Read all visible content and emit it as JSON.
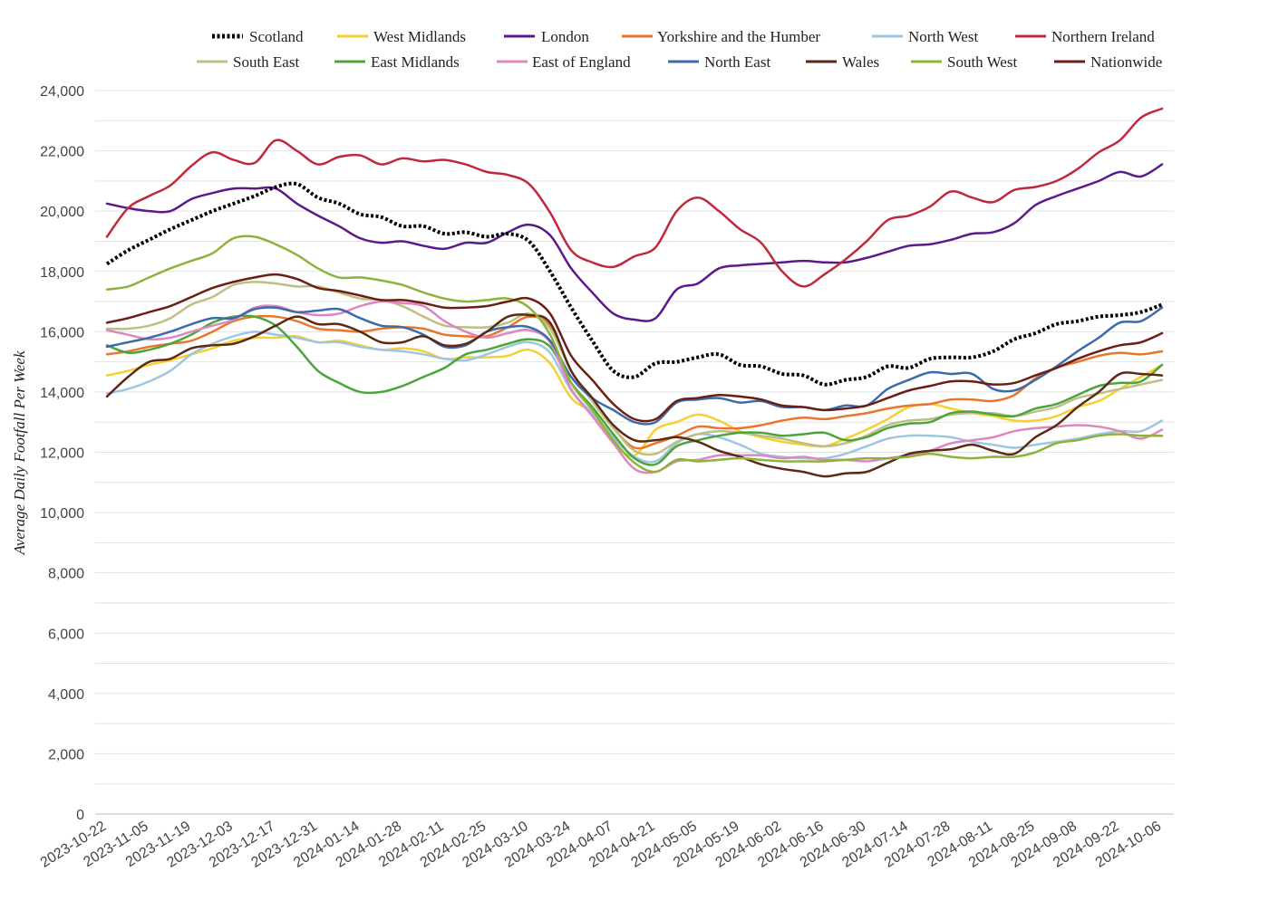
{
  "chart_data": {
    "type": "line",
    "title": "",
    "xlabel": "",
    "ylabel": "Average Daily Footfall Per Week",
    "ylim": [
      0,
      24000
    ],
    "yticks": [
      0,
      2000,
      4000,
      6000,
      8000,
      10000,
      12000,
      14000,
      16000,
      18000,
      20000,
      22000,
      24000
    ],
    "ytick_labels": [
      "0",
      "2,000",
      "4,000",
      "6,000",
      "8,000",
      "10,000",
      "12,000",
      "14,000",
      "16,000",
      "18,000",
      "20,000",
      "22,000",
      "24,000"
    ],
    "grid": true,
    "legend_position": "top",
    "x": [
      "2023-10-22",
      "2023-10-29",
      "2023-11-05",
      "2023-11-12",
      "2023-11-19",
      "2023-11-26",
      "2023-12-03",
      "2023-12-10",
      "2023-12-17",
      "2023-12-24",
      "2023-12-31",
      "2024-01-07",
      "2024-01-14",
      "2024-01-21",
      "2024-01-28",
      "2024-02-04",
      "2024-02-11",
      "2024-02-18",
      "2024-02-25",
      "2024-03-03",
      "2024-03-10",
      "2024-03-17",
      "2024-03-24",
      "2024-03-31",
      "2024-04-07",
      "2024-04-14",
      "2024-04-21",
      "2024-04-28",
      "2024-05-05",
      "2024-05-12",
      "2024-05-19",
      "2024-05-26",
      "2024-06-02",
      "2024-06-09",
      "2024-06-16",
      "2024-06-23",
      "2024-06-30",
      "2024-07-07",
      "2024-07-14",
      "2024-07-21",
      "2024-07-28",
      "2024-08-04",
      "2024-08-11",
      "2024-08-18",
      "2024-08-25",
      "2024-09-01",
      "2024-09-08",
      "2024-09-15",
      "2024-09-22",
      "2024-09-29",
      "2024-10-06"
    ],
    "x_tick_labels": [
      "2023-10-22",
      "2023-11-05",
      "2023-11-19",
      "2023-12-03",
      "2023-12-17",
      "2023-12-31",
      "2024-01-14",
      "2024-01-28",
      "2024-02-11",
      "2024-02-25",
      "2024-03-10",
      "2024-03-24",
      "2024-04-07",
      "2024-04-21",
      "2024-05-05",
      "2024-05-19",
      "2024-06-02",
      "2024-06-16",
      "2024-06-30",
      "2024-07-14",
      "2024-07-28",
      "2024-08-11",
      "2024-08-25",
      "2024-09-08",
      "2024-09-22",
      "2024-10-06"
    ],
    "series": [
      {
        "name": "Scotland",
        "color": "#000000",
        "dashed": true,
        "values": [
          18250,
          18700,
          19050,
          19400,
          19700,
          20000,
          20250,
          20500,
          20800,
          20900,
          20450,
          20250,
          19900,
          19800,
          19500,
          19500,
          19250,
          19300,
          19150,
          19250,
          19000,
          18000,
          16800,
          15700,
          14700,
          14500,
          14950,
          15000,
          15150,
          15250,
          14900,
          14850,
          14600,
          14550,
          14250,
          14400,
          14500,
          14850,
          14800,
          15100,
          15150,
          15150,
          15350,
          15750,
          15950,
          16250,
          16350,
          16500,
          16550,
          16650,
          16900
        ]
      },
      {
        "name": "West Midlands",
        "color": "#f5d033",
        "dashed": false,
        "values": [
          14550,
          14700,
          14900,
          15050,
          15250,
          15450,
          15700,
          15800,
          15800,
          15850,
          15650,
          15700,
          15550,
          15400,
          15450,
          15350,
          15100,
          15150,
          15150,
          15200,
          15400,
          14950,
          13800,
          13300,
          12300,
          11900,
          12750,
          13000,
          13250,
          13050,
          12700,
          12500,
          12350,
          12250,
          12200,
          12450,
          12750,
          13100,
          13500,
          13600,
          13450,
          13300,
          13200,
          13050,
          13050,
          13200,
          13500,
          13700,
          14100,
          14500,
          14900
        ]
      },
      {
        "name": "London",
        "color": "#5b1a8c",
        "dashed": false,
        "values": [
          20250,
          20100,
          20000,
          20000,
          20400,
          20600,
          20750,
          20750,
          20750,
          20250,
          19850,
          19500,
          19100,
          18950,
          19000,
          18850,
          18750,
          18950,
          18950,
          19300,
          19550,
          19200,
          18100,
          17300,
          16600,
          16400,
          16450,
          17400,
          17600,
          18100,
          18200,
          18250,
          18300,
          18350,
          18300,
          18300,
          18450,
          18650,
          18850,
          18900,
          19050,
          19250,
          19300,
          19600,
          20200,
          20500,
          20750,
          21000,
          21300,
          21150,
          21550
        ]
      },
      {
        "name": "Yorkshire and the Humber",
        "color": "#e8762c",
        "dashed": false,
        "values": [
          15250,
          15350,
          15500,
          15600,
          15700,
          16000,
          16350,
          16500,
          16500,
          16350,
          16100,
          16050,
          16000,
          16100,
          16150,
          16100,
          15900,
          15850,
          15850,
          16150,
          16500,
          16200,
          14700,
          13700,
          12800,
          12150,
          12300,
          12550,
          12850,
          12800,
          12800,
          12900,
          13050,
          13150,
          13100,
          13200,
          13300,
          13450,
          13550,
          13600,
          13750,
          13750,
          13700,
          13900,
          14450,
          14800,
          15000,
          15200,
          15300,
          15250,
          15350
        ]
      },
      {
        "name": "North West",
        "color": "#9ec6e3",
        "dashed": false,
        "values": [
          13950,
          14100,
          14350,
          14700,
          15250,
          15600,
          15850,
          16000,
          15900,
          15800,
          15650,
          15650,
          15500,
          15400,
          15350,
          15250,
          15100,
          15050,
          15250,
          15500,
          15650,
          15300,
          14050,
          13300,
          12500,
          11850,
          11700,
          12300,
          12600,
          12500,
          12250,
          11950,
          11850,
          11800,
          11800,
          11950,
          12200,
          12450,
          12550,
          12550,
          12500,
          12350,
          12250,
          12150,
          12250,
          12350,
          12450,
          12600,
          12700,
          12700,
          13050
        ]
      },
      {
        "name": "Northern Ireland",
        "color": "#c0283c",
        "dashed": false,
        "values": [
          19150,
          20100,
          20500,
          20850,
          21500,
          21950,
          21700,
          21600,
          22350,
          22000,
          21550,
          21800,
          21850,
          21550,
          21750,
          21650,
          21700,
          21550,
          21300,
          21200,
          20900,
          19950,
          18700,
          18300,
          18150,
          18500,
          18800,
          20000,
          20450,
          20000,
          19400,
          18950,
          18000,
          17500,
          17900,
          18400,
          19000,
          19700,
          19850,
          20150,
          20650,
          20450,
          20300,
          20700,
          20800,
          21000,
          21400,
          21950,
          22350,
          23100,
          23400
        ]
      },
      {
        "name": "South East",
        "color": "#bdbf85",
        "dashed": false,
        "values": [
          16100,
          16100,
          16200,
          16450,
          16900,
          17150,
          17550,
          17650,
          17600,
          17500,
          17500,
          17300,
          17100,
          17050,
          16850,
          16500,
          16200,
          16150,
          16150,
          16300,
          16600,
          16100,
          14700,
          13700,
          12800,
          12050,
          11950,
          12350,
          12600,
          12700,
          12650,
          12550,
          12450,
          12300,
          12200,
          12300,
          12550,
          12900,
          13050,
          13100,
          13250,
          13300,
          13300,
          13200,
          13350,
          13500,
          13800,
          13950,
          14100,
          14250,
          14400
        ]
      },
      {
        "name": "East Midlands",
        "color": "#4ca43d",
        "dashed": false,
        "values": [
          15550,
          15300,
          15400,
          15600,
          15900,
          16300,
          16500,
          16500,
          16200,
          15500,
          14700,
          14300,
          14000,
          14000,
          14200,
          14500,
          14800,
          15250,
          15400,
          15600,
          15750,
          15500,
          14300,
          13500,
          12600,
          11800,
          11600,
          12200,
          12400,
          12550,
          12650,
          12650,
          12550,
          12600,
          12650,
          12400,
          12500,
          12800,
          12950,
          13000,
          13300,
          13350,
          13250,
          13200,
          13450,
          13600,
          13900,
          14200,
          14300,
          14350,
          14900
        ]
      },
      {
        "name": "East of England",
        "color": "#dd87c0",
        "dashed": false,
        "values": [
          16050,
          15900,
          15750,
          15800,
          16000,
          16200,
          16400,
          16800,
          16850,
          16650,
          16550,
          16600,
          16850,
          17000,
          16950,
          16850,
          16350,
          16000,
          15800,
          15950,
          16050,
          15650,
          14100,
          13200,
          12300,
          11450,
          11350,
          11700,
          11750,
          11900,
          11900,
          11900,
          11800,
          11850,
          11750,
          11750,
          11700,
          11800,
          11900,
          12050,
          12300,
          12400,
          12500,
          12700,
          12800,
          12850,
          12900,
          12850,
          12700,
          12450,
          12750
        ]
      },
      {
        "name": "North East",
        "color": "#3c6aaa",
        "dashed": false,
        "values": [
          15500,
          15650,
          15800,
          16000,
          16250,
          16450,
          16450,
          16750,
          16800,
          16650,
          16700,
          16750,
          16450,
          16200,
          16150,
          15900,
          15500,
          15550,
          16000,
          16150,
          16150,
          15700,
          14500,
          13800,
          13400,
          13000,
          13000,
          13650,
          13750,
          13800,
          13650,
          13700,
          13500,
          13500,
          13400,
          13550,
          13550,
          14100,
          14400,
          14650,
          14600,
          14600,
          14100,
          14050,
          14400,
          14850,
          15350,
          15800,
          16300,
          16350,
          16800
        ]
      },
      {
        "name": "Wales",
        "color": "#5a2a14",
        "dashed": false,
        "values": [
          13850,
          14500,
          15000,
          15100,
          15450,
          15550,
          15600,
          15850,
          16200,
          16500,
          16250,
          16250,
          16000,
          15650,
          15650,
          15850,
          15550,
          15600,
          16000,
          16500,
          16550,
          16300,
          14700,
          13800,
          12900,
          12400,
          12400,
          12500,
          12350,
          12050,
          11850,
          11600,
          11450,
          11350,
          11200,
          11300,
          11350,
          11650,
          11950,
          12050,
          12100,
          12250,
          12050,
          11950,
          12500,
          12900,
          13500,
          14000,
          14600,
          14600,
          14550
        ]
      },
      {
        "name": "South West",
        "color": "#8db33a",
        "dashed": false,
        "values": [
          17400,
          17500,
          17800,
          18100,
          18350,
          18600,
          19100,
          19150,
          18900,
          18550,
          18100,
          17800,
          17800,
          17700,
          17550,
          17300,
          17100,
          17000,
          17050,
          17100,
          16800,
          15900,
          14300,
          13400,
          12400,
          11650,
          11350,
          11750,
          11700,
          11750,
          11800,
          11750,
          11700,
          11700,
          11700,
          11750,
          11800,
          11800,
          11850,
          11950,
          11850,
          11800,
          11850,
          11850,
          12000,
          12300,
          12400,
          12550,
          12600,
          12550,
          12550
        ]
      },
      {
        "name": "Nationwide",
        "color": "#6b1f14",
        "dashed": false,
        "values": [
          16300,
          16450,
          16650,
          16850,
          17150,
          17450,
          17650,
          17800,
          17900,
          17750,
          17450,
          17350,
          17200,
          17050,
          17050,
          16950,
          16800,
          16800,
          16850,
          17000,
          17100,
          16600,
          15200,
          14400,
          13600,
          13100,
          13100,
          13700,
          13800,
          13900,
          13850,
          13750,
          13550,
          13500,
          13400,
          13450,
          13550,
          13800,
          14050,
          14200,
          14350,
          14350,
          14250,
          14300,
          14550,
          14800,
          15100,
          15350,
          15550,
          15650,
          15950
        ]
      }
    ]
  }
}
